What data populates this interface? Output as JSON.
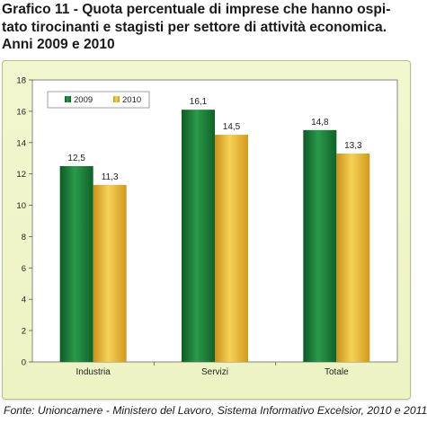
{
  "title_lines": [
    "Grafico 11 - Quota percentuale di imprese che hanno ospi-",
    "tato tirocinanti e stagisti per settore di attività economica.",
    "Anni 2009 e 2010"
  ],
  "source": "Fonte: Unioncamere - Ministero del Lavoro, Sistema Informativo Excelsior, 2010 e 2011",
  "colors": {
    "series_2009": "#1e7d3a",
    "series_2010": "#e8b82a",
    "panel_bg": "#f0f5c9",
    "plot_bg": "#ffffff"
  },
  "chart_data": {
    "type": "bar",
    "title": "",
    "xlabel": "",
    "ylabel": "",
    "categories": [
      "Industria",
      "Servizi",
      "Totale"
    ],
    "series": [
      {
        "name": "2009",
        "values": [
          12.5,
          16.1,
          14.8
        ],
        "labels": [
          "12,5",
          "16,1",
          "14,8"
        ]
      },
      {
        "name": "2010",
        "values": [
          11.3,
          14.5,
          13.3
        ],
        "labels": [
          "11,3",
          "14,5",
          "13,3"
        ]
      }
    ],
    "ylim": [
      0,
      18
    ],
    "yticks": [
      "0",
      "2",
      "4",
      "6",
      "8",
      "10",
      "12",
      "14",
      "16",
      "18"
    ],
    "grid": false,
    "legend": "top-left"
  }
}
